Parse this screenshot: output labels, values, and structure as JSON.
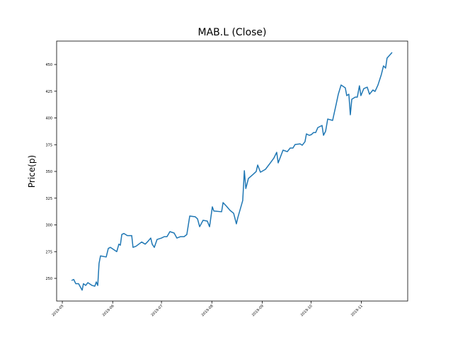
{
  "chart_data": {
    "type": "line",
    "title": "MAB.L (Close)",
    "ylabel": "Price(p)",
    "x": [
      18022.7,
      18024,
      18025.3,
      18027,
      18029.2,
      18030,
      18031.4,
      18032.7,
      18035.3,
      18037,
      18037.9,
      18038.8,
      18039.6,
      18040.5,
      18044,
      18045.3,
      18046.6,
      18050.5,
      18051.8,
      18052.7,
      18053.6,
      18054.9,
      18057,
      18059.7,
      18060.5,
      18062.3,
      18065.8,
      18068,
      18069.2,
      18071.4,
      18072.3,
      18073.6,
      18075.3,
      18078,
      18079.7,
      18081.4,
      18083.2,
      18085.8,
      18087.5,
      18089.7,
      18091.9,
      18093.6,
      18095.4,
      18098.8,
      18100.2,
      18101.5,
      18103.6,
      18106.2,
      18107.6,
      18109.3,
      18110.2,
      18115,
      18115.9,
      18118,
      18120.2,
      18122.4,
      18124.1,
      18125,
      18128,
      18129,
      18129.9,
      18131.5,
      18134.5,
      18136.3,
      18137.2,
      18138.9,
      18142,
      18145,
      18147.2,
      18148.9,
      18149.8,
      18152.8,
      18155.4,
      18157.2,
      18158.9,
      18160.2,
      18163.3,
      18164.6,
      18166.3,
      18167.2,
      18168.9,
      18170.2,
      18171.6,
      18172.9,
      18174.2,
      18176.8,
      18177.7,
      18179,
      18180.3,
      18183.3,
      18185.5,
      18186.8,
      18188.5,
      18191.1,
      18192,
      18193.3,
      18194.2,
      18195.1,
      18197.2,
      18198.5,
      18199.8,
      18200.7,
      18202.5,
      18204.6,
      18206,
      18208.1,
      18209.4,
      18211.2,
      18213.3,
      18214.6,
      18215.9,
      18216.8,
      18219.9
    ],
    "series": [
      {
        "name": "Close",
        "color": "#1f77b4",
        "values": [
          248,
          249,
          245,
          245,
          239,
          245,
          243.4,
          246,
          243.4,
          242.7,
          246.7,
          243.4,
          264,
          271,
          270,
          278,
          279,
          275,
          282,
          281,
          291,
          292,
          290,
          290,
          279,
          280,
          284,
          282,
          283.8,
          287.7,
          282,
          279,
          286.4,
          287.7,
          289,
          289,
          293.7,
          292.4,
          287.7,
          289,
          289,
          291,
          308.3,
          307.6,
          305.6,
          298.3,
          304.3,
          303.6,
          298.3,
          316.9,
          313,
          312.3,
          320.9,
          317.5,
          313.6,
          310.9,
          301,
          306.9,
          322.8,
          350.7,
          334,
          343.4,
          347.4,
          350,
          356,
          349.3,
          352,
          358,
          362.6,
          367.9,
          358,
          369.9,
          368.5,
          371.9,
          371.9,
          375.2,
          375.8,
          374.5,
          377.8,
          385.1,
          383.8,
          384.4,
          386.4,
          386.4,
          391,
          393,
          383.8,
          387.7,
          399,
          397.7,
          412.9,
          422.2,
          430.8,
          428.2,
          420.9,
          422.2,
          403,
          417.5,
          419.5,
          419.5,
          430.1,
          420.9,
          427.5,
          428.8,
          422.2,
          426.2,
          424.8,
          430.8,
          440.7,
          448.7,
          446.7,
          456,
          461.3
        ]
      }
    ],
    "xlim": [
      18013.5,
      18229.5
    ],
    "xticks": [
      {
        "value": 18017,
        "label": "2019-05"
      },
      {
        "value": 18048,
        "label": "2019-06"
      },
      {
        "value": 18078,
        "label": "2019-07"
      },
      {
        "value": 18109,
        "label": "2019-08"
      },
      {
        "value": 18140,
        "label": "2019-09"
      },
      {
        "value": 18170,
        "label": "2019-10"
      },
      {
        "value": 18201,
        "label": "2019-11"
      }
    ],
    "ylim": [
      228.8,
      471.9
    ],
    "yticks": [
      250,
      275,
      300,
      325,
      350,
      375,
      400,
      425,
      450
    ],
    "grid": false
  }
}
